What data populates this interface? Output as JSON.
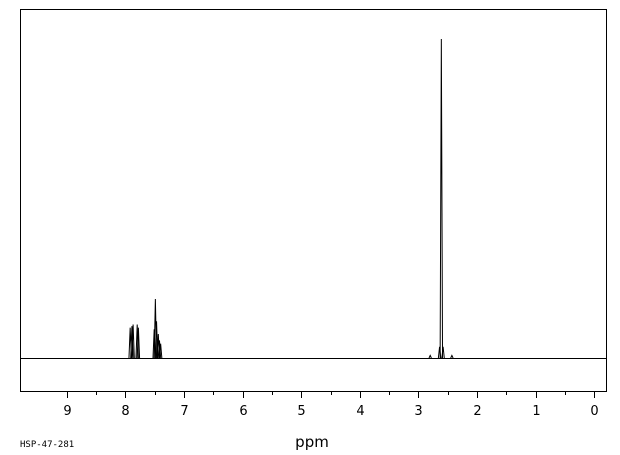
{
  "chart_data": {
    "type": "line",
    "xlabel": "ppm",
    "x_reversed": true,
    "xlim": [
      9.8,
      -0.2
    ],
    "ylim": [
      -0.12,
      1.0
    ],
    "x_ticks": [
      9,
      8,
      7,
      6,
      5,
      4,
      3,
      2,
      1,
      0
    ],
    "x_minor_ticks": [
      8.5,
      7.5,
      6.5,
      5.5,
      4.5,
      3.5,
      2.5,
      1.5,
      0.5
    ],
    "baseline": 0.0,
    "peaks": [
      {
        "ppm": 7.92,
        "height": 0.095
      },
      {
        "ppm": 7.89,
        "height": 0.1
      },
      {
        "ppm": 7.87,
        "height": 0.105
      },
      {
        "ppm": 7.8,
        "height": 0.105
      },
      {
        "ppm": 7.78,
        "height": 0.095
      },
      {
        "ppm": 7.51,
        "height": 0.09
      },
      {
        "ppm": 7.49,
        "height": 0.185
      },
      {
        "ppm": 7.47,
        "height": 0.115
      },
      {
        "ppm": 7.44,
        "height": 0.075
      },
      {
        "ppm": 7.42,
        "height": 0.055
      },
      {
        "ppm": 7.4,
        "height": 0.045
      },
      {
        "ppm": 2.8,
        "height": 0.008
      },
      {
        "ppm": 2.64,
        "height": 0.035
      },
      {
        "ppm": 2.61,
        "height": 1.0
      },
      {
        "ppm": 2.58,
        "height": 0.035
      },
      {
        "ppm": 2.43,
        "height": 0.008
      }
    ],
    "spectrum_id": "HSP-47-281"
  }
}
